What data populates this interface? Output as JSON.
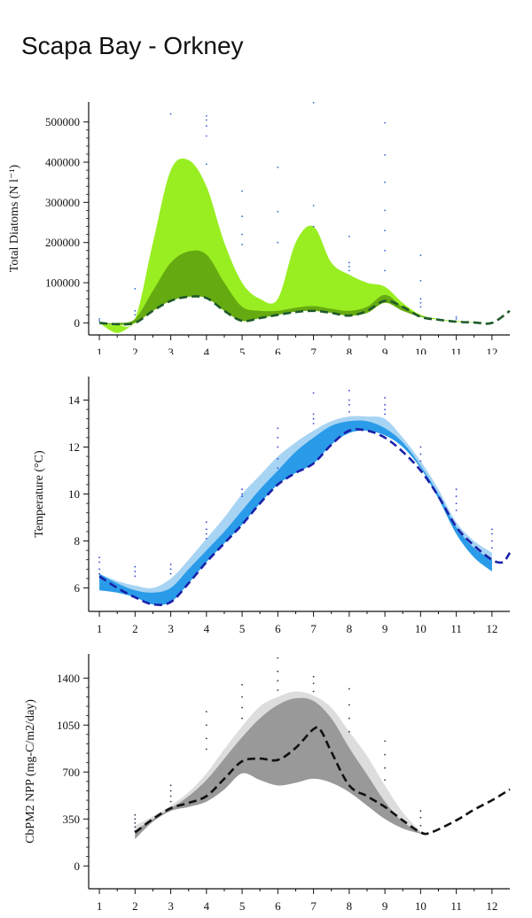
{
  "page": {
    "title": "Scapa Bay - Orkney"
  },
  "chart_data": [
    {
      "type": "area",
      "ylabel": "Total Diatoms (N l⁻¹)",
      "xlim": [
        0.7,
        12.5
      ],
      "ylim": [
        -30000,
        550000
      ],
      "xticks": [
        1,
        2,
        3,
        4,
        5,
        6,
        7,
        8,
        9,
        10,
        11,
        12
      ],
      "yticks": [
        0,
        100000,
        200000,
        300000,
        400000,
        500000
      ],
      "ytick_labels": [
        "0",
        "100000",
        "200000",
        "300000",
        "400000",
        "500000"
      ],
      "colors": {
        "outer": "#99ee22",
        "inner": "#66aa11",
        "line": "#1e5a2a",
        "points": "#3366cc"
      },
      "bands": [
        {
          "name": "outer",
          "x": [
            1,
            1.5,
            2,
            2.5,
            3,
            3.5,
            4,
            4.5,
            5,
            5.5,
            6,
            6.5,
            7,
            7.5,
            8,
            8.5,
            9,
            9.5,
            10,
            10.5,
            11,
            11.5,
            12
          ],
          "lower": [
            0,
            -25000,
            0,
            30000,
            55000,
            65000,
            62000,
            30000,
            5000,
            12000,
            20000,
            28000,
            30000,
            25000,
            18000,
            25000,
            50000,
            30000,
            15000,
            8000,
            3000,
            1000,
            0
          ],
          "upper": [
            0,
            -5000,
            10000,
            200000,
            380000,
            405000,
            340000,
            200000,
            100000,
            60000,
            60000,
            200000,
            240000,
            150000,
            120000,
            100000,
            90000,
            50000,
            20000,
            10000,
            5000,
            2000,
            0
          ]
        },
        {
          "name": "inner",
          "x": [
            1,
            1.5,
            2,
            2.5,
            3,
            3.5,
            4,
            4.5,
            5,
            5.5,
            6,
            6.5,
            7,
            7.5,
            8,
            8.5,
            9,
            9.5,
            10,
            10.5,
            11,
            11.5,
            12
          ],
          "lower": [
            0,
            -5000,
            0,
            30000,
            55000,
            65000,
            62000,
            30000,
            5000,
            12000,
            20000,
            28000,
            30000,
            25000,
            18000,
            25000,
            50000,
            30000,
            15000,
            8000,
            3000,
            1000,
            0
          ],
          "upper": [
            0,
            0,
            10000,
            80000,
            150000,
            178000,
            170000,
            100000,
            40000,
            30000,
            30000,
            38000,
            42000,
            35000,
            30000,
            40000,
            70000,
            40000,
            18000,
            8000,
            3000,
            1000,
            0
          ]
        }
      ],
      "line": {
        "x": [
          1,
          1.5,
          2,
          2.5,
          3,
          3.5,
          4,
          4.5,
          5,
          5.5,
          6,
          6.5,
          7,
          7.5,
          8,
          8.5,
          9,
          9.5,
          10,
          10.5,
          11,
          11.5,
          12,
          12.5
        ],
        "y": [
          0,
          -3000,
          0,
          30000,
          55000,
          65000,
          62000,
          30000,
          5000,
          12000,
          20000,
          27000,
          30000,
          25000,
          18000,
          30000,
          55000,
          40000,
          15000,
          8000,
          3000,
          1000,
          0,
          30000
        ]
      },
      "points": [
        [
          1,
          10000
        ],
        [
          1,
          5000
        ],
        [
          2,
          85000
        ],
        [
          2,
          30000
        ],
        [
          2,
          20000
        ],
        [
          3,
          520000
        ],
        [
          4,
          515000
        ],
        [
          4,
          505000
        ],
        [
          4,
          490000
        ],
        [
          4,
          465000
        ],
        [
          4,
          395000
        ],
        [
          5,
          328000
        ],
        [
          5,
          265000
        ],
        [
          5,
          220000
        ],
        [
          5,
          195000
        ],
        [
          6,
          387000
        ],
        [
          6,
          277000
        ],
        [
          6,
          200000
        ],
        [
          7,
          548000
        ],
        [
          7,
          292000
        ],
        [
          7,
          240000
        ],
        [
          8,
          215000
        ],
        [
          8,
          150000
        ],
        [
          8,
          140000
        ],
        [
          8,
          130000
        ],
        [
          9,
          498000
        ],
        [
          9,
          418000
        ],
        [
          9,
          350000
        ],
        [
          9,
          280000
        ],
        [
          9,
          230000
        ],
        [
          9,
          180000
        ],
        [
          9,
          130000
        ],
        [
          10,
          168000
        ],
        [
          10,
          105000
        ],
        [
          10,
          60000
        ],
        [
          10,
          50000
        ],
        [
          10,
          40000
        ],
        [
          11,
          15000
        ],
        [
          11,
          10000
        ]
      ]
    },
    {
      "type": "area",
      "ylabel": "Temperature (°C)",
      "xlim": [
        0.7,
        12.5
      ],
      "ylim": [
        5,
        15
      ],
      "xticks": [
        1,
        2,
        3,
        4,
        5,
        6,
        7,
        8,
        9,
        10,
        11,
        12
      ],
      "yticks": [
        6,
        8,
        10,
        12,
        14
      ],
      "ytick_labels": [
        "6",
        "8",
        "10",
        "12",
        "14"
      ],
      "colors": {
        "outer": "#a8d4f4",
        "inner": "#2a9be8",
        "line": "#1a20a8",
        "points": "#3344cc"
      },
      "bands": [
        {
          "name": "outer",
          "x": [
            1,
            1.5,
            2,
            2.5,
            3,
            3.5,
            4,
            4.5,
            5,
            5.5,
            6,
            6.5,
            7,
            7.5,
            8,
            8.5,
            9,
            9.5,
            10,
            10.5,
            11,
            11.5,
            12
          ],
          "lower": [
            5.9,
            5.8,
            5.6,
            5.3,
            5.4,
            6.2,
            7.1,
            7.9,
            8.7,
            9.6,
            10.4,
            10.9,
            11.3,
            12.1,
            12.6,
            12.7,
            12.5,
            12.0,
            11.1,
            9.8,
            8.3,
            7.3,
            6.7
          ],
          "upper": [
            6.6,
            6.3,
            6.1,
            6.0,
            6.4,
            7.2,
            8.1,
            9.0,
            10.0,
            10.8,
            11.6,
            12.2,
            12.7,
            13.1,
            13.3,
            13.3,
            13.2,
            12.4,
            11.4,
            10.2,
            8.8,
            8.0,
            7.5
          ]
        },
        {
          "name": "inner",
          "x": [
            1,
            1.5,
            2,
            2.5,
            3,
            3.5,
            4,
            4.5,
            5,
            5.5,
            6,
            6.5,
            7,
            7.5,
            8,
            8.5,
            9,
            9.5,
            10,
            10.5,
            11,
            11.5,
            12
          ],
          "lower": [
            5.9,
            5.8,
            5.6,
            5.3,
            5.4,
            6.2,
            7.1,
            7.9,
            8.7,
            9.6,
            10.4,
            10.9,
            11.3,
            12.1,
            12.6,
            12.7,
            12.5,
            12.0,
            11.1,
            9.8,
            8.3,
            7.3,
            6.7
          ],
          "upper": [
            6.6,
            6.2,
            5.9,
            5.8,
            6.0,
            6.8,
            7.6,
            8.4,
            9.3,
            10.2,
            11.0,
            11.8,
            12.4,
            12.9,
            13.1,
            13.1,
            12.8,
            12.2,
            11.2,
            10.0,
            8.6,
            7.7,
            7.2
          ]
        }
      ],
      "line": {
        "x": [
          1,
          1.5,
          2,
          2.5,
          3,
          3.5,
          4,
          4.5,
          5,
          5.5,
          6,
          6.5,
          7,
          7.5,
          8,
          8.5,
          9,
          9.5,
          10,
          10.5,
          11,
          11.5,
          12,
          12.3,
          12.5
        ],
        "y": [
          6.5,
          6.0,
          5.6,
          5.3,
          5.4,
          6.2,
          7.1,
          7.9,
          8.7,
          9.6,
          10.4,
          10.9,
          11.3,
          12.1,
          12.7,
          12.7,
          12.4,
          11.8,
          11.0,
          9.9,
          8.6,
          7.8,
          7.2,
          7.1,
          7.5
        ]
      },
      "points": [
        [
          1,
          7.3
        ],
        [
          1,
          7.1
        ],
        [
          1,
          6.8
        ],
        [
          1,
          6.6
        ],
        [
          2,
          6.9
        ],
        [
          2,
          6.7
        ],
        [
          2,
          6.5
        ],
        [
          3,
          7.0
        ],
        [
          3,
          6.8
        ],
        [
          3,
          6.6
        ],
        [
          4,
          8.8
        ],
        [
          4,
          8.5
        ],
        [
          4,
          8.3
        ],
        [
          4,
          8.1
        ],
        [
          5,
          10.2
        ],
        [
          5,
          10.0
        ],
        [
          5,
          9.9
        ],
        [
          6,
          12.8
        ],
        [
          6,
          12.4
        ],
        [
          6,
          12.0
        ],
        [
          6,
          11.5
        ],
        [
          6,
          11.1
        ],
        [
          7,
          14.3
        ],
        [
          7,
          13.4
        ],
        [
          7,
          13.2
        ],
        [
          7,
          13.0
        ],
        [
          8,
          14.4
        ],
        [
          8,
          14.0
        ],
        [
          8,
          13.8
        ],
        [
          8,
          13.5
        ],
        [
          9,
          14.1
        ],
        [
          9,
          13.8
        ],
        [
          9,
          13.6
        ],
        [
          9,
          13.4
        ],
        [
          10,
          12.0
        ],
        [
          10,
          11.7
        ],
        [
          10,
          11.4
        ],
        [
          11,
          10.2
        ],
        [
          11,
          9.9
        ],
        [
          11,
          9.6
        ],
        [
          11,
          9.3
        ],
        [
          12,
          8.5
        ],
        [
          12,
          8.3
        ],
        [
          12,
          8.0
        ],
        [
          12,
          7.7
        ]
      ]
    },
    {
      "type": "area",
      "ylabel": "CbPM2 NPP (mg-C/m2/day)",
      "xlim": [
        0.7,
        12.5
      ],
      "ylim": [
        -170,
        1580
      ],
      "xticks": [
        1,
        2,
        3,
        4,
        5,
        6,
        7,
        8,
        9,
        10,
        11,
        12
      ],
      "yticks": [
        0,
        350,
        700,
        1050,
        1400
      ],
      "ytick_labels": [
        "0",
        "350",
        "700",
        "1050",
        "1400"
      ],
      "colors": {
        "outer": "#dddddd",
        "inner": "#999999",
        "line": "#111111",
        "points": "#333355"
      },
      "bands": [
        {
          "name": "outer",
          "x": [
            2,
            2.5,
            3,
            3.5,
            4,
            4.5,
            5,
            5.5,
            6,
            6.5,
            7,
            7.5,
            8,
            8.5,
            9,
            9.5,
            10
          ],
          "lower": [
            200,
            330,
            410,
            440,
            480,
            570,
            690,
            640,
            600,
            620,
            650,
            620,
            550,
            450,
            350,
            280,
            240
          ],
          "upper": [
            300,
            370,
            450,
            550,
            690,
            870,
            1040,
            1190,
            1260,
            1300,
            1270,
            1180,
            1000,
            820,
            600,
            400,
            260
          ]
        },
        {
          "name": "inner",
          "x": [
            2,
            2.5,
            3,
            3.5,
            4,
            4.5,
            5,
            5.5,
            6,
            6.5,
            7,
            7.5,
            8,
            8.5,
            9,
            9.5,
            10
          ],
          "lower": [
            200,
            330,
            410,
            440,
            480,
            570,
            690,
            640,
            600,
            620,
            650,
            620,
            550,
            450,
            350,
            280,
            240
          ],
          "upper": [
            260,
            350,
            430,
            520,
            640,
            800,
            960,
            1100,
            1200,
            1250,
            1230,
            1100,
            880,
            680,
            480,
            330,
            250
          ]
        }
      ],
      "line": {
        "x": [
          2,
          2.5,
          3,
          3.5,
          4,
          4.5,
          5,
          5.5,
          6,
          6.5,
          7,
          7.2,
          7.5,
          8,
          8.5,
          9,
          9.5,
          10,
          10.3,
          11,
          11.5,
          12,
          12.5
        ],
        "y": [
          250,
          350,
          430,
          470,
          520,
          650,
          780,
          800,
          790,
          880,
          1020,
          1010,
          850,
          600,
          520,
          440,
          340,
          250,
          250,
          340,
          420,
          490,
          570
        ]
      },
      "points": [
        [
          2,
          380
        ],
        [
          2,
          350
        ],
        [
          2,
          320
        ],
        [
          2,
          290
        ],
        [
          2,
          260
        ],
        [
          3,
          600
        ],
        [
          3,
          560
        ],
        [
          3,
          520
        ],
        [
          3,
          480
        ],
        [
          4,
          1150
        ],
        [
          4,
          1050
        ],
        [
          4,
          950
        ],
        [
          4,
          870
        ],
        [
          5,
          1350
        ],
        [
          5,
          1260
        ],
        [
          5,
          1180
        ],
        [
          5,
          1100
        ],
        [
          6,
          1550
        ],
        [
          6,
          1450
        ],
        [
          6,
          1380
        ],
        [
          6,
          1310
        ],
        [
          7,
          1410
        ],
        [
          7,
          1360
        ],
        [
          7,
          1300
        ],
        [
          8,
          1320
        ],
        [
          8,
          1200
        ],
        [
          8,
          1100
        ],
        [
          8,
          1000
        ],
        [
          9,
          930
        ],
        [
          9,
          830
        ],
        [
          9,
          730
        ],
        [
          9,
          640
        ],
        [
          10,
          410
        ],
        [
          10,
          360
        ],
        [
          10,
          300
        ]
      ]
    }
  ]
}
